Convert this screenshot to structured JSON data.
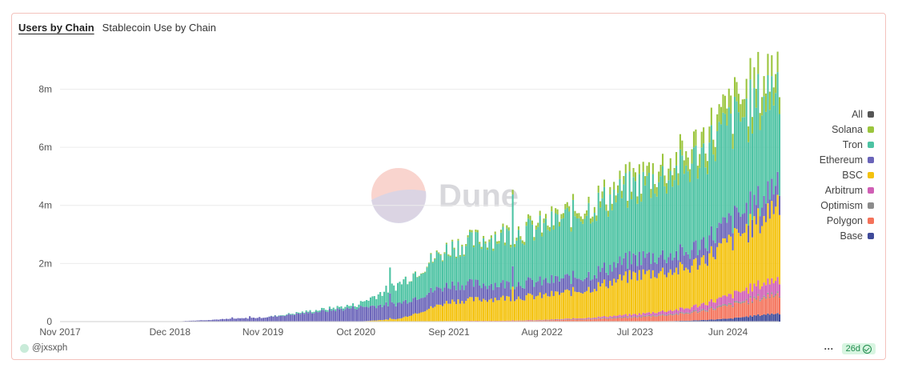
{
  "tabs": [
    {
      "label": "Users by Chain",
      "active": true
    },
    {
      "label": "Stablecoin Use by Chain",
      "active": false
    }
  ],
  "watermark": "Dune",
  "footer": {
    "author": "@jxsxph",
    "freshness": "26d"
  },
  "chart_data": {
    "type": "stacked-bar",
    "title": "Users by Chain",
    "x_start": "2017-11",
    "x_end": "2024-12",
    "x_ticks": [
      "Nov 2017",
      "Dec 2018",
      "Nov 2019",
      "Oct 2020",
      "Sep 2021",
      "Aug 2022",
      "Jul 2023",
      "Jun 2024"
    ],
    "y_ticks": [
      "0",
      "2m",
      "4m",
      "6m",
      "8m"
    ],
    "ylim": [
      0,
      9500000
    ],
    "legend": [
      "All",
      "Solana",
      "Tron",
      "Ethereum",
      "BSC",
      "Arbitrum",
      "Optimism",
      "Polygon",
      "Base"
    ],
    "colors": {
      "All": "#555555",
      "Solana": "#9bc53d",
      "Tron": "#4dc3a3",
      "Ethereum": "#6a64b9",
      "BSC": "#f4c20d",
      "Arbitrum": "#d05fb5",
      "Optimism": "#8c8c8c",
      "Polygon": "#f4725a",
      "Base": "#3f4a99"
    },
    "stack_order": [
      "Base",
      "Polygon",
      "Optimism",
      "Arbitrum",
      "BSC",
      "Ethereum",
      "Tron",
      "Solana"
    ],
    "anchor_dates": [
      "2017-11",
      "2018-12",
      "2019-11",
      "2020-10",
      "2021-03",
      "2021-09",
      "2022-03",
      "2022-08",
      "2023-01",
      "2023-07",
      "2024-01",
      "2024-06",
      "2024-10",
      "2024-12"
    ],
    "series": [
      {
        "name": "Base",
        "values": [
          0,
          0,
          0,
          0,
          0,
          0,
          0,
          0,
          0,
          0,
          30000,
          100000,
          250000,
          300000
        ]
      },
      {
        "name": "Polygon",
        "values": [
          0,
          0,
          0,
          0,
          0,
          20000,
          30000,
          40000,
          80000,
          150000,
          250000,
          450000,
          600000,
          700000
        ]
      },
      {
        "name": "Optimism",
        "values": [
          0,
          0,
          0,
          0,
          0,
          0,
          0,
          10000,
          20000,
          30000,
          40000,
          50000,
          60000,
          60000
        ]
      },
      {
        "name": "Arbitrum",
        "values": [
          0,
          0,
          0,
          0,
          0,
          0,
          0,
          10000,
          30000,
          80000,
          150000,
          300000,
          450000,
          500000
        ]
      },
      {
        "name": "BSC",
        "values": [
          0,
          0,
          0,
          0,
          100000,
          700000,
          800000,
          850000,
          1000000,
          1400000,
          1400000,
          1900000,
          2300000,
          2900000
        ]
      },
      {
        "name": "Ethereum",
        "values": [
          0,
          0,
          150000,
          500000,
          550000,
          600000,
          500000,
          500000,
          500000,
          600000,
          550000,
          700000,
          700000,
          800000
        ]
      },
      {
        "name": "Tron",
        "values": [
          0,
          0,
          0,
          100000,
          700000,
          1300000,
          1700000,
          1900000,
          2300000,
          2500000,
          3000000,
          3400000,
          3500000,
          3400000
        ]
      },
      {
        "name": "Solana",
        "values": [
          0,
          0,
          0,
          0,
          0,
          50000,
          100000,
          150000,
          200000,
          300000,
          500000,
          600000,
          700000,
          700000
        ]
      }
    ]
  }
}
